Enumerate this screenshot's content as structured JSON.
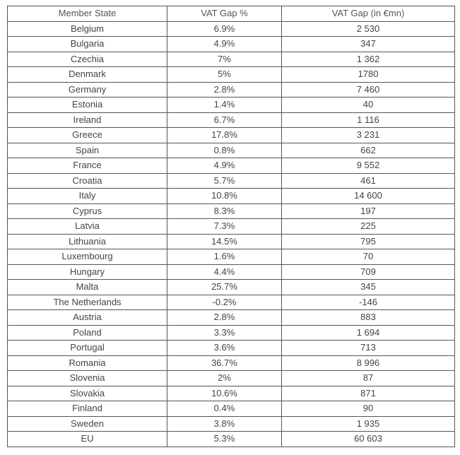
{
  "table": {
    "headers": [
      "Member State",
      "VAT Gap %",
      "VAT Gap (in €mn)"
    ],
    "rows": [
      [
        "Belgium",
        "6.9%",
        "2 530"
      ],
      [
        "Bulgaria",
        "4.9%",
        "347"
      ],
      [
        "Czechia",
        "7%",
        "1 362"
      ],
      [
        "Denmark",
        "5%",
        "1780"
      ],
      [
        "Germany",
        "2.8%",
        "7 460"
      ],
      [
        "Estonia",
        "1.4%",
        "40"
      ],
      [
        "Ireland",
        "6.7%",
        "1 116"
      ],
      [
        "Greece",
        "17.8%",
        "3 231"
      ],
      [
        "Spain",
        "0.8%",
        "662"
      ],
      [
        "France",
        "4.9%",
        "9 552"
      ],
      [
        "Croatia",
        "5.7%",
        "461"
      ],
      [
        "Italy",
        "10.8%",
        "14 600"
      ],
      [
        "Cyprus",
        "8.3%",
        "197"
      ],
      [
        "Latvia",
        "7.3%",
        "225"
      ],
      [
        "Lithuania",
        "14.5%",
        "795"
      ],
      [
        "Luxembourg",
        "1.6%",
        "70"
      ],
      [
        "Hungary",
        "4.4%",
        "709"
      ],
      [
        "Malta",
        "25.7%",
        "345"
      ],
      [
        "The Netherlands",
        "-0.2%",
        "-146"
      ],
      [
        "Austria",
        "2.8%",
        "883"
      ],
      [
        "Poland",
        "3.3%",
        "1 694"
      ],
      [
        "Portugal",
        "3.6%",
        "713"
      ],
      [
        "Romania",
        "36.7%",
        "8 996"
      ],
      [
        "Slovenia",
        "2%",
        "87"
      ],
      [
        "Slovakia",
        "10.6%",
        "871"
      ],
      [
        "Finland",
        "0.4%",
        "90"
      ],
      [
        "Sweden",
        "3.8%",
        "1 935"
      ],
      [
        "EU",
        "5.3%",
        "60 603"
      ]
    ]
  }
}
